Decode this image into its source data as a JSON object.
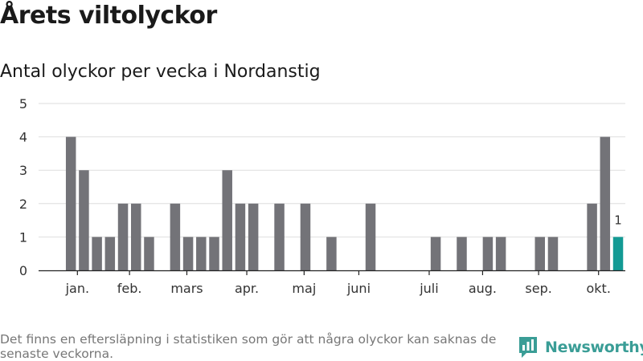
{
  "header": {
    "title": "Årets viltolyckor",
    "subtitle": "Antal olyckor per vecka i Nordanstig"
  },
  "chart_data": {
    "type": "bar",
    "title": "Årets viltolyckor",
    "subtitle": "Antal olyckor per vecka i Nordanstig",
    "xlabel": "",
    "ylabel": "",
    "ylim": [
      0,
      5
    ],
    "yticks": [
      0,
      1,
      2,
      3,
      4,
      5
    ],
    "grid": true,
    "week_count": 43,
    "weeks": [
      1,
      2,
      3,
      4,
      5,
      6,
      7,
      8,
      9,
      10,
      11,
      12,
      13,
      14,
      15,
      16,
      17,
      18,
      19,
      20,
      21,
      22,
      23,
      24,
      25,
      26,
      27,
      28,
      29,
      30,
      31,
      32,
      33,
      34,
      35,
      36,
      37,
      38,
      39,
      40,
      41,
      42,
      43
    ],
    "values": [
      4,
      3,
      1,
      1,
      2,
      2,
      1,
      0,
      2,
      1,
      1,
      1,
      3,
      2,
      2,
      0,
      2,
      0,
      2,
      0,
      1,
      0,
      0,
      2,
      0,
      0,
      0,
      0,
      1,
      0,
      1,
      0,
      1,
      1,
      0,
      0,
      1,
      1,
      0,
      0,
      2,
      4,
      1
    ],
    "highlight_index": 42,
    "highlight_label": "1",
    "colors": {
      "bar": "#737378",
      "highlight": "#139a94",
      "grid": "#dedede",
      "axis": "#222222"
    },
    "x_tick_labels": [
      {
        "label": "jan.",
        "week": 1.5
      },
      {
        "label": "feb.",
        "week": 5.5
      },
      {
        "label": "mars",
        "week": 9.9
      },
      {
        "label": "apr.",
        "week": 14.5
      },
      {
        "label": "maj",
        "week": 18.9
      },
      {
        "label": "juni",
        "week": 23.1
      },
      {
        "label": "juli",
        "week": 28.5
      },
      {
        "label": "aug.",
        "week": 32.6
      },
      {
        "label": "sep.",
        "week": 36.9
      },
      {
        "label": "okt.",
        "week": 41.5
      }
    ]
  },
  "footer": {
    "note": "Det finns en eftersläpning i statistiken som gör att några olyckor kan saknas de senaste veckorna.",
    "brand": "Newsworthy",
    "brand_color": "#3a9d96"
  }
}
